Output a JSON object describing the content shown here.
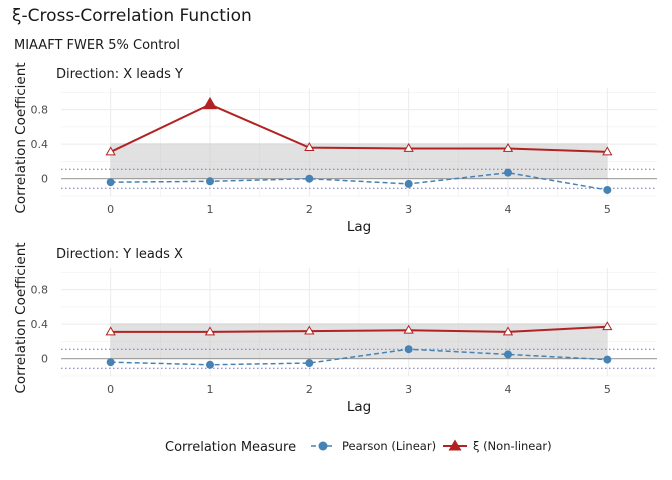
{
  "chart_data": {
    "type": "line",
    "title": "ξ-Cross-Correlation Function",
    "subtitle": "MIAAFT FWER 5% Control",
    "xlabel": "Lag",
    "ylabel": "Correlation Coefficient",
    "x": [
      0,
      1,
      2,
      3,
      4,
      5
    ],
    "ylim": [
      -0.2,
      1.05
    ],
    "yticks": [
      0.0,
      0.4,
      0.8
    ],
    "grid": true,
    "legend": {
      "title": "Correlation Measure",
      "position": "bottom",
      "items": [
        "Pearson (Linear)",
        "ξ (Non-linear)"
      ]
    },
    "colors": {
      "pearson": "#4682b4",
      "xi": "#b22222"
    },
    "panels": [
      {
        "label": "Direction: X leads Y",
        "series": [
          {
            "name": "Pearson (Linear)",
            "values": [
              -0.04,
              -0.03,
              0.0,
              -0.06,
              0.07,
              -0.13
            ]
          },
          {
            "name": "ξ (Non-linear)",
            "values": [
              0.31,
              0.86,
              0.36,
              0.35,
              0.35,
              0.31
            ]
          }
        ],
        "xi_threshold": 0.41,
        "significant_xi": [
          1
        ],
        "pearson_bounds": [
          -0.11,
          0.11
        ]
      },
      {
        "label": "Direction: Y leads X",
        "series": [
          {
            "name": "Pearson (Linear)",
            "values": [
              -0.04,
              -0.07,
              -0.05,
              0.11,
              0.05,
              -0.01
            ]
          },
          {
            "name": "ξ (Non-linear)",
            "values": [
              0.31,
              0.31,
              0.32,
              0.33,
              0.31,
              0.37
            ]
          }
        ],
        "xi_threshold": 0.41,
        "significant_xi": [],
        "pearson_bounds": [
          -0.11,
          0.11
        ]
      }
    ]
  }
}
